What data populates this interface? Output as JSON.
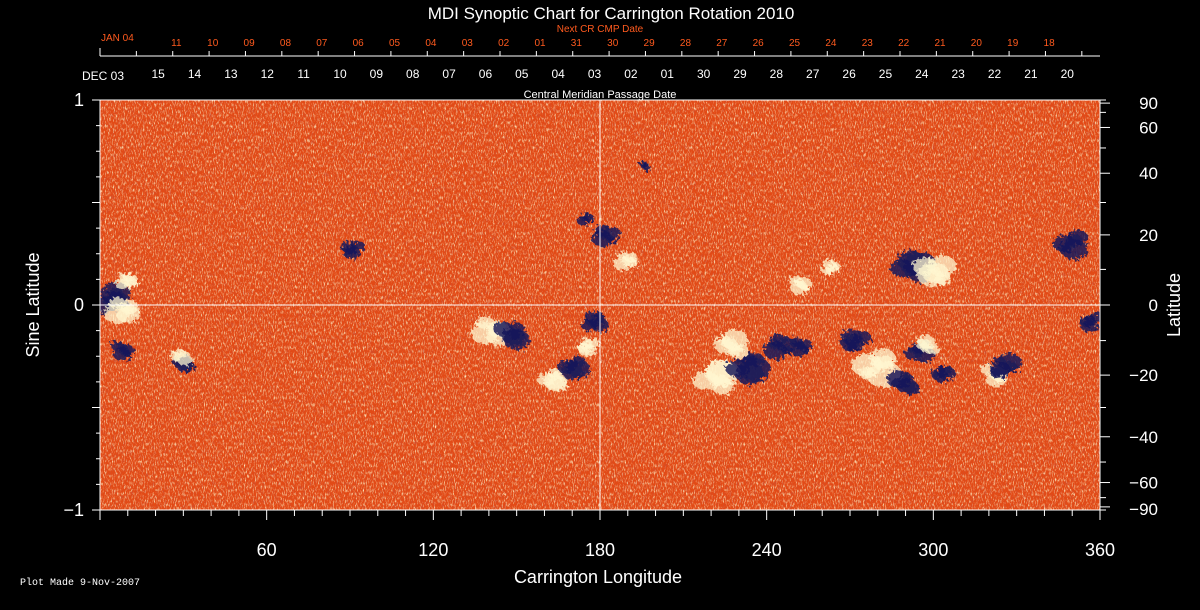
{
  "chart_data": {
    "type": "heatmap",
    "title": "MDI Synoptic Chart for Carrington Rotation 2010",
    "xlabel": "Carrington Longitude",
    "ylabel_left": "Sine Latitude",
    "ylabel_right": "Latitude",
    "xlim": [
      0,
      360
    ],
    "ylim": [
      -1,
      1
    ],
    "x_ticks": [
      60,
      120,
      180,
      240,
      300,
      360
    ],
    "y_ticks_left": [
      1,
      0,
      -1
    ],
    "y_tick_labels_left": [
      "1",
      "0",
      "−1"
    ],
    "y_ticks_right": [
      90,
      60,
      40,
      20,
      0,
      -20,
      -40,
      -60,
      -90
    ],
    "y_tick_labels_right": [
      "90",
      "60",
      "40",
      "20",
      "0",
      "−20",
      "−40",
      "−60",
      "−90"
    ],
    "top_axis_title": "Central Meridian Passage Date",
    "top_axis_start_label": "DEC 03",
    "top_axis_labels": [
      "15",
      "14",
      "13",
      "12",
      "11",
      "10",
      "09",
      "08",
      "07",
      "06",
      "05",
      "04",
      "03",
      "02",
      "01",
      "30",
      "29",
      "28",
      "27",
      "26",
      "25",
      "24",
      "23",
      "22",
      "21",
      "20"
    ],
    "next_cr_title": "Next CR CMP Date",
    "next_cr_start_label": "JAN 04",
    "next_cr_labels": [
      "11",
      "10",
      "09",
      "08",
      "07",
      "06",
      "05",
      "04",
      "03",
      "02",
      "01",
      "31",
      "30",
      "29",
      "28",
      "27",
      "26",
      "25",
      "24",
      "23",
      "22",
      "21",
      "20",
      "19",
      "18"
    ],
    "plot_made": "Plot Made  9-Nov-2007",
    "grid": "lines at longitude 180 and latitude 0",
    "colors": {
      "background": "#000000",
      "field_base": "#e8501a",
      "positive_polarity": "#fff7d0",
      "negative_polarity": "#1a1a5a",
      "next_cr_text": "#ff5a1e",
      "axis": "#ffffff"
    },
    "active_regions": [
      {
        "lon": 4,
        "sinlat": 0.03,
        "polarity": "negative",
        "strength": 1.0
      },
      {
        "lon": 9,
        "sinlat": -0.02,
        "polarity": "positive",
        "strength": 0.9
      },
      {
        "lon": 10,
        "sinlat": 0.12,
        "polarity": "positive",
        "strength": 0.6
      },
      {
        "lon": 8,
        "sinlat": -0.22,
        "polarity": "negative",
        "strength": 0.6
      },
      {
        "lon": 30,
        "sinlat": -0.28,
        "polarity": "negative",
        "strength": 0.6
      },
      {
        "lon": 29,
        "sinlat": -0.25,
        "polarity": "positive",
        "strength": 0.5
      },
      {
        "lon": 91,
        "sinlat": 0.27,
        "polarity": "negative",
        "strength": 0.6
      },
      {
        "lon": 142,
        "sinlat": -0.12,
        "polarity": "positive",
        "strength": 1.0
      },
      {
        "lon": 148,
        "sinlat": -0.14,
        "polarity": "negative",
        "strength": 0.9
      },
      {
        "lon": 163,
        "sinlat": -0.36,
        "polarity": "positive",
        "strength": 0.8
      },
      {
        "lon": 170,
        "sinlat": -0.3,
        "polarity": "negative",
        "strength": 0.8
      },
      {
        "lon": 176,
        "sinlat": -0.2,
        "polarity": "positive",
        "strength": 0.6
      },
      {
        "lon": 178,
        "sinlat": -0.08,
        "polarity": "negative",
        "strength": 0.7
      },
      {
        "lon": 182,
        "sinlat": 0.34,
        "polarity": "negative",
        "strength": 0.7
      },
      {
        "lon": 190,
        "sinlat": 0.22,
        "polarity": "positive",
        "strength": 0.6
      },
      {
        "lon": 222,
        "sinlat": -0.36,
        "polarity": "positive",
        "strength": 1.2
      },
      {
        "lon": 228,
        "sinlat": -0.2,
        "polarity": "positive",
        "strength": 0.9
      },
      {
        "lon": 233,
        "sinlat": -0.3,
        "polarity": "negative",
        "strength": 1.1
      },
      {
        "lon": 245,
        "sinlat": -0.2,
        "polarity": "negative",
        "strength": 0.8
      },
      {
        "lon": 252,
        "sinlat": -0.2,
        "polarity": "negative",
        "strength": 0.6
      },
      {
        "lon": 252,
        "sinlat": 0.1,
        "polarity": "positive",
        "strength": 0.6
      },
      {
        "lon": 263,
        "sinlat": 0.18,
        "polarity": "positive",
        "strength": 0.5
      },
      {
        "lon": 280,
        "sinlat": -0.3,
        "polarity": "positive",
        "strength": 1.2
      },
      {
        "lon": 272,
        "sinlat": -0.18,
        "polarity": "negative",
        "strength": 0.8
      },
      {
        "lon": 290,
        "sinlat": -0.38,
        "polarity": "negative",
        "strength": 0.8
      },
      {
        "lon": 295,
        "sinlat": -0.22,
        "polarity": "negative",
        "strength": 0.7
      },
      {
        "lon": 292,
        "sinlat": 0.18,
        "polarity": "negative",
        "strength": 1.1
      },
      {
        "lon": 300,
        "sinlat": 0.16,
        "polarity": "positive",
        "strength": 1.1
      },
      {
        "lon": 298,
        "sinlat": -0.2,
        "polarity": "positive",
        "strength": 0.6
      },
      {
        "lon": 303,
        "sinlat": -0.33,
        "polarity": "negative",
        "strength": 0.6
      },
      {
        "lon": 322,
        "sinlat": -0.34,
        "polarity": "positive",
        "strength": 0.7
      },
      {
        "lon": 325,
        "sinlat": -0.3,
        "polarity": "negative",
        "strength": 0.8
      },
      {
        "lon": 350,
        "sinlat": 0.3,
        "polarity": "negative",
        "strength": 0.9
      },
      {
        "lon": 357,
        "sinlat": -0.08,
        "polarity": "negative",
        "strength": 0.6
      },
      {
        "lon": 175,
        "sinlat": 0.42,
        "polarity": "negative",
        "strength": 0.4
      },
      {
        "lon": 196,
        "sinlat": 0.68,
        "polarity": "negative",
        "strength": 0.3
      }
    ]
  }
}
